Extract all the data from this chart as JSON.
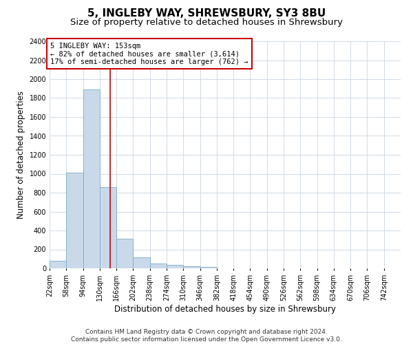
{
  "title": "5, INGLEBY WAY, SHREWSBURY, SY3 8BU",
  "subtitle": "Size of property relative to detached houses in Shrewsbury",
  "xlabel": "Distribution of detached houses by size in Shrewsbury",
  "ylabel": "Number of detached properties",
  "bin_edges": [
    22,
    58,
    94,
    130,
    166,
    202,
    238,
    274,
    310,
    346,
    382,
    418,
    454,
    490,
    526,
    562,
    598,
    634,
    670,
    706,
    742
  ],
  "bar_heights": [
    80,
    1010,
    1890,
    860,
    310,
    115,
    50,
    40,
    25,
    15,
    0,
    0,
    0,
    0,
    0,
    0,
    0,
    0,
    0,
    0
  ],
  "bar_color": "#cad9e9",
  "bar_edge_color": "#7aaac8",
  "vline_x": 153,
  "vline_color": "#cc0000",
  "annotation_line1": "5 INGLEBY WAY: 153sqm",
  "annotation_line2": "← 82% of detached houses are smaller (3,614)",
  "annotation_line3": "17% of semi-detached houses are larger (762) →",
  "annotation_box_color": "#ffffff",
  "annotation_box_edge_color": "#cc0000",
  "ylim": [
    0,
    2400
  ],
  "yticks": [
    0,
    200,
    400,
    600,
    800,
    1000,
    1200,
    1400,
    1600,
    1800,
    2000,
    2200,
    2400
  ],
  "tick_labels": [
    "22sqm",
    "58sqm",
    "94sqm",
    "130sqm",
    "166sqm",
    "202sqm",
    "238sqm",
    "274sqm",
    "310sqm",
    "346sqm",
    "382sqm",
    "418sqm",
    "454sqm",
    "490sqm",
    "526sqm",
    "562sqm",
    "598sqm",
    "634sqm",
    "670sqm",
    "706sqm",
    "742sqm"
  ],
  "footer_line1": "Contains HM Land Registry data © Crown copyright and database right 2024.",
  "footer_line2": "Contains public sector information licensed under the Open Government Licence v3.0.",
  "bg_color": "#ffffff",
  "grid_color": "#c8d4e0",
  "title_fontsize": 11,
  "subtitle_fontsize": 9.5,
  "axis_label_fontsize": 8.5,
  "tick_fontsize": 7,
  "annotation_fontsize": 7.5,
  "footer_fontsize": 6.5
}
